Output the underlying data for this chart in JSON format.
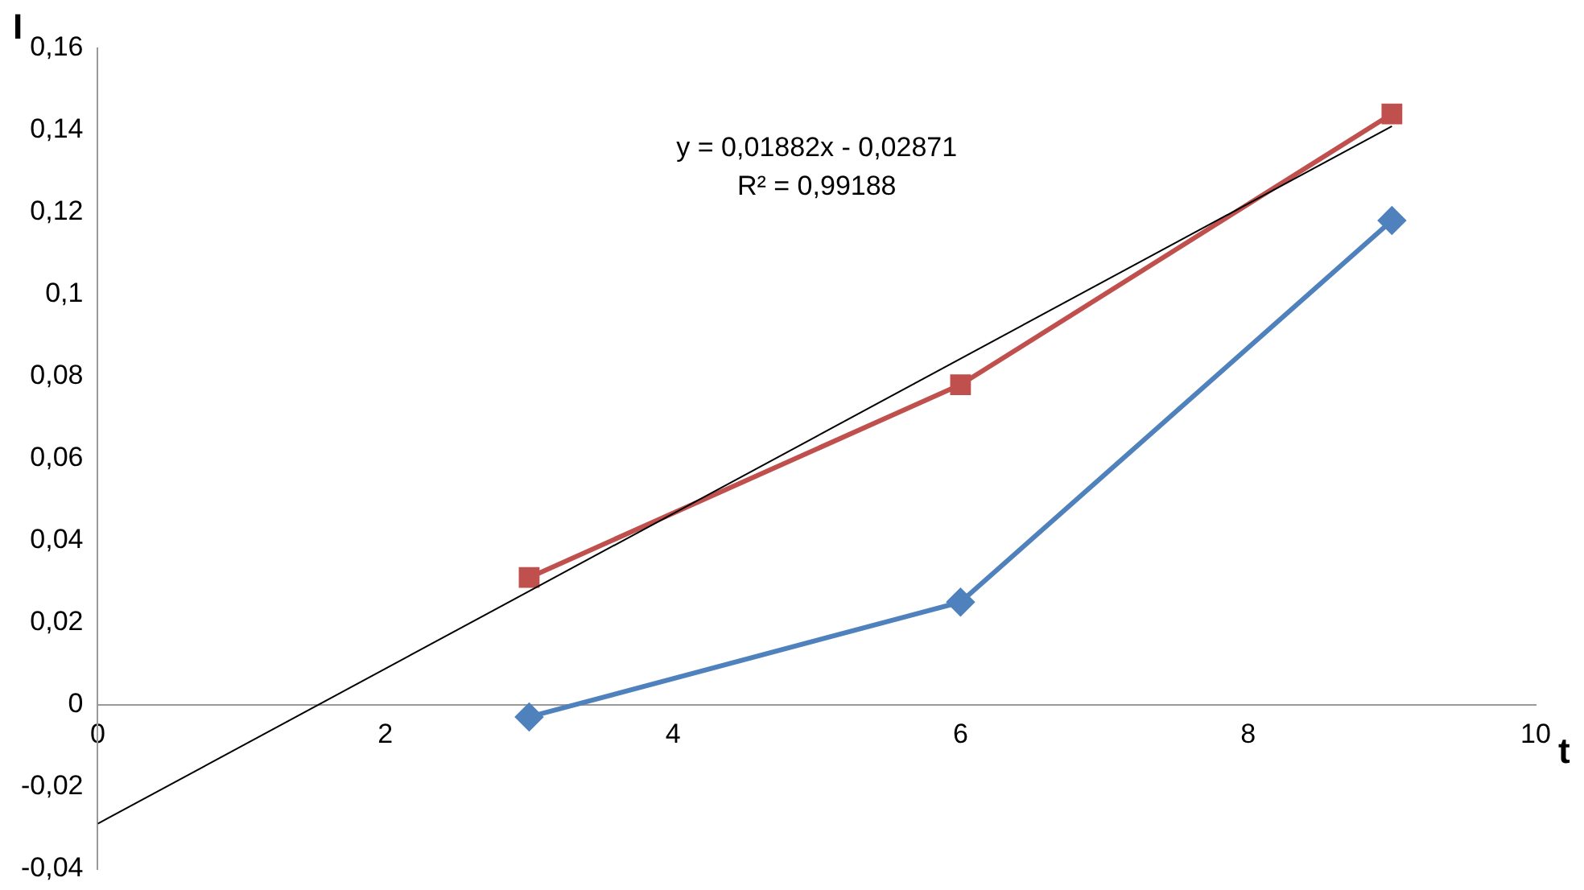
{
  "chart_data": {
    "type": "line",
    "xlabel": "t",
    "ylabel": "I",
    "xlim": [
      0,
      10
    ],
    "xticks": [
      0,
      2,
      4,
      6,
      8,
      10
    ],
    "ylim": [
      -0.04,
      0.16
    ],
    "yticks": [
      {
        "value": -0.04,
        "label": "-0,04"
      },
      {
        "value": -0.02,
        "label": "-0,02"
      },
      0,
      {
        "value": 0.02,
        "label": "0,02"
      },
      {
        "value": 0.04,
        "label": "0,04"
      },
      {
        "value": 0.06,
        "label": "0,06"
      },
      {
        "value": 0.08,
        "label": "0,08"
      },
      {
        "value": 0.1,
        "label": "0,1"
      },
      {
        "value": 0.12,
        "label": "0,12"
      },
      {
        "value": 0.14,
        "label": "0,14"
      },
      {
        "value": 0.16,
        "label": "0,16"
      }
    ],
    "grid": false,
    "legend": false,
    "line_style": "solid",
    "series": [
      {
        "color": "#4f81bd",
        "marker": "diamond",
        "x": [
          3,
          6,
          9
        ],
        "values": [
          -0.003,
          0.025,
          0.118
        ]
      },
      {
        "color": "#c0504d",
        "marker": "square",
        "x": [
          3,
          6,
          9
        ],
        "values": [
          0.031,
          0.078,
          0.144
        ]
      },
      {
        "type": "line",
        "color": "#000000",
        "marker": "none",
        "x": [
          0,
          9
        ],
        "values": [
          -0.029,
          0.141
        ]
      }
    ],
    "annotations": [
      "y = 0,01882x - 0,02871",
      "R² = 0,99188"
    ]
  }
}
